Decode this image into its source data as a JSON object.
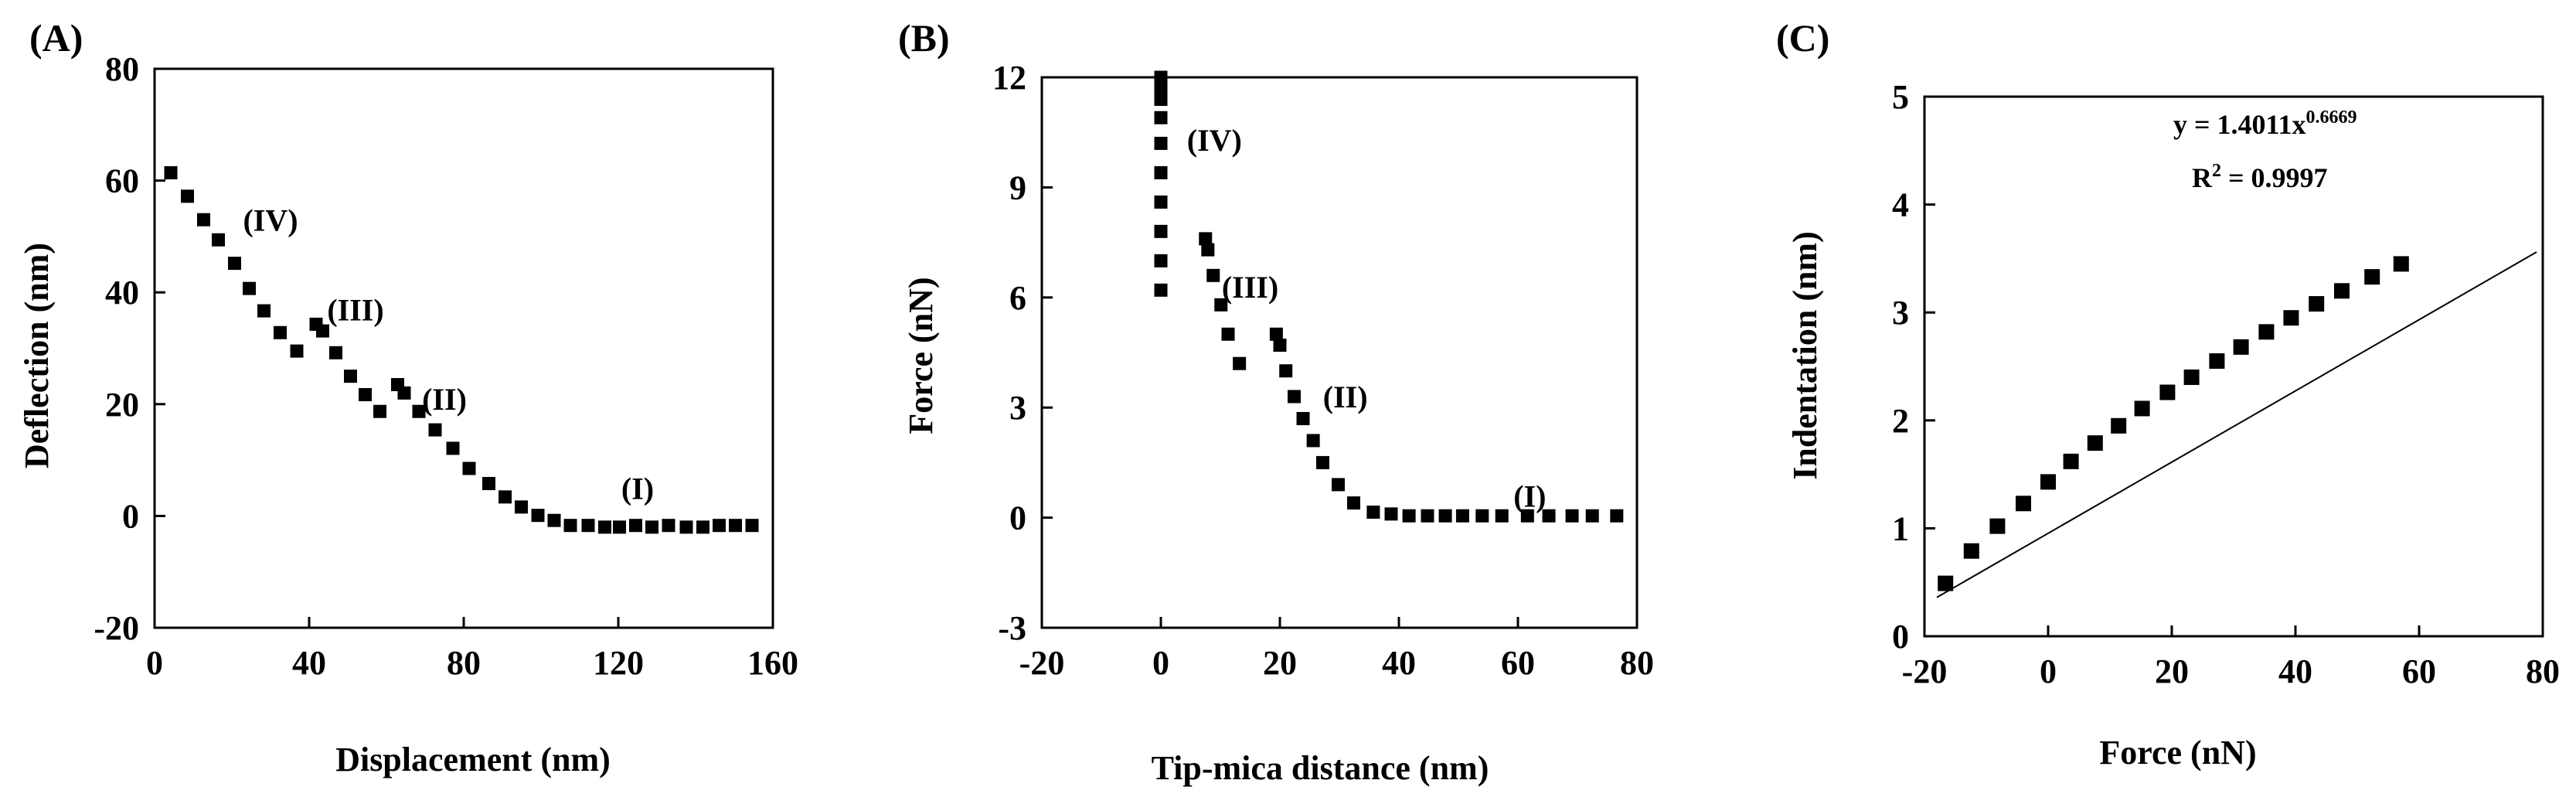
{
  "chart_data": [
    {
      "panel": "(A)",
      "type": "scatter",
      "xlabel": "Displacement (nm)",
      "ylabel": "Deflection (nm)",
      "xlim": [
        0,
        160
      ],
      "ylim": [
        -20,
        80
      ],
      "xticks": [
        0,
        40,
        80,
        120,
        160
      ],
      "yticks": [
        -20,
        0,
        20,
        40,
        60,
        80
      ],
      "xtick_labels": [
        "0",
        "40",
        "80",
        "120",
        "160"
      ],
      "ytick_labels": [
        "-20",
        "0",
        "20",
        "40",
        "60",
        "80"
      ],
      "series": [
        {
          "name": "deflection",
          "x": [
            4.2,
            8.5,
            12.7,
            16.5,
            20.7,
            24.5,
            28.3,
            32.5,
            36.8,
            41.8,
            43.5,
            46.9,
            50.7,
            54.5,
            58.3,
            62.9,
            64.6,
            68.4,
            72.6,
            77.2,
            81.4,
            86.5,
            90.7,
            94.9,
            99.2,
            103.4,
            107.6,
            112.2,
            116.5,
            120.3,
            124.5,
            128.7,
            133.0,
            137.6,
            141.9,
            146.1,
            150.3,
            154.6
          ],
          "y": [
            61.4,
            57.2,
            53.0,
            49.4,
            45.2,
            40.7,
            36.7,
            32.8,
            29.5,
            34.3,
            33.1,
            29.2,
            25.0,
            21.7,
            18.7,
            23.5,
            22.0,
            18.7,
            15.4,
            12.1,
            8.5,
            5.8,
            3.4,
            1.6,
            0.1,
            -0.8,
            -1.7,
            -1.7,
            -2.0,
            -2.0,
            -1.7,
            -2.0,
            -1.7,
            -2.0,
            -2.0,
            -1.7,
            -1.7,
            -1.7
          ]
        }
      ],
      "annotations": [
        {
          "text": "(IV)",
          "x": 30,
          "y": 51
        },
        {
          "text": "(III)",
          "x": 52,
          "y": 35
        },
        {
          "text": "(II)",
          "x": 75,
          "y": 19
        },
        {
          "text": "(I)",
          "x": 125,
          "y": 3
        }
      ]
    },
    {
      "panel": "(B)",
      "type": "scatter",
      "xlabel": "Tip-mica distance (nm)",
      "ylabel": "Force (nN)",
      "xlim": [
        -20,
        80
      ],
      "ylim": [
        -3,
        12
      ],
      "xticks": [
        -20,
        0,
        20,
        40,
        60,
        80
      ],
      "yticks": [
        -3,
        0,
        3,
        6,
        9,
        12
      ],
      "xtick_labels": [
        "-20",
        "0",
        "20",
        "40",
        "60",
        "80"
      ],
      "ytick_labels": [
        "-3",
        "0",
        "3",
        "6",
        "9",
        "12"
      ],
      "series": [
        {
          "name": "force",
          "x": [
            0.0,
            0.0,
            0.0,
            0.0,
            0.0,
            0.0,
            0.0,
            0.0,
            0.0,
            0.0,
            0.0,
            7.5,
            7.9,
            8.8,
            10.1,
            11.3,
            13.2,
            19.4,
            20.0,
            21.0,
            22.4,
            23.9,
            25.6,
            27.2,
            29.8,
            32.4,
            35.7,
            38.7,
            41.7,
            44.8,
            47.8,
            50.7,
            54.0,
            57.3,
            61.6,
            65.2,
            69.1,
            72.5,
            76.6
          ],
          "y": [
            6.2,
            7.0,
            7.8,
            8.6,
            9.4,
            10.2,
            10.9,
            11.4,
            11.7,
            11.9,
            12.0,
            7.6,
            7.3,
            6.6,
            5.8,
            5.0,
            4.2,
            5.0,
            4.7,
            4.0,
            3.3,
            2.7,
            2.1,
            1.5,
            0.9,
            0.4,
            0.15,
            0.1,
            0.05,
            0.05,
            0.05,
            0.05,
            0.05,
            0.05,
            0.05,
            0.05,
            0.05,
            0.05,
            0.05
          ]
        }
      ],
      "annotations": [
        {
          "text": "(IV)",
          "x": 9,
          "y": 10
        },
        {
          "text": "(III)",
          "x": 15,
          "y": 6
        },
        {
          "text": "(II)",
          "x": 31,
          "y": 3
        },
        {
          "text": "(I)",
          "x": 62,
          "y": 0.3
        }
      ]
    },
    {
      "panel": "(C)",
      "type": "scatter",
      "xlabel": "Force (nN)",
      "ylabel": "Indentation (nm)",
      "xlim": [
        -20,
        80
      ],
      "ylim": [
        0,
        5
      ],
      "xticks": [
        -20,
        0,
        20,
        40,
        60,
        80
      ],
      "yticks": [
        0,
        1,
        2,
        3,
        4,
        5
      ],
      "xtick_labels": [
        "-20",
        "0",
        "20",
        "40",
        "60",
        "80"
      ],
      "ytick_labels": [
        "0",
        "1",
        "2",
        "3",
        "4",
        "5"
      ],
      "series": [
        {
          "name": "indentation",
          "x": [
            -16.6,
            -12.4,
            -8.2,
            -4.0,
            0.0,
            3.7,
            7.6,
            11.4,
            15.2,
            19.3,
            23.2,
            27.3,
            31.2,
            35.3,
            39.3,
            43.4,
            47.5,
            52.4,
            57.1
          ],
          "y": [
            0.49,
            0.79,
            1.02,
            1.23,
            1.43,
            1.62,
            1.79,
            1.95,
            2.11,
            2.26,
            2.4,
            2.55,
            2.68,
            2.82,
            2.95,
            3.08,
            3.2,
            3.33,
            3.45
          ]
        }
      ],
      "fit": {
        "x_start": -18,
        "x_end": 79,
        "y_start": 0.36,
        "y_end": 3.56
      },
      "equation": {
        "prefix": "y = 1.4011x",
        "exponent": "0.6669"
      },
      "r2": {
        "prefix": "R",
        "exponent": "2",
        "suffix": " = 0.9997"
      }
    }
  ]
}
